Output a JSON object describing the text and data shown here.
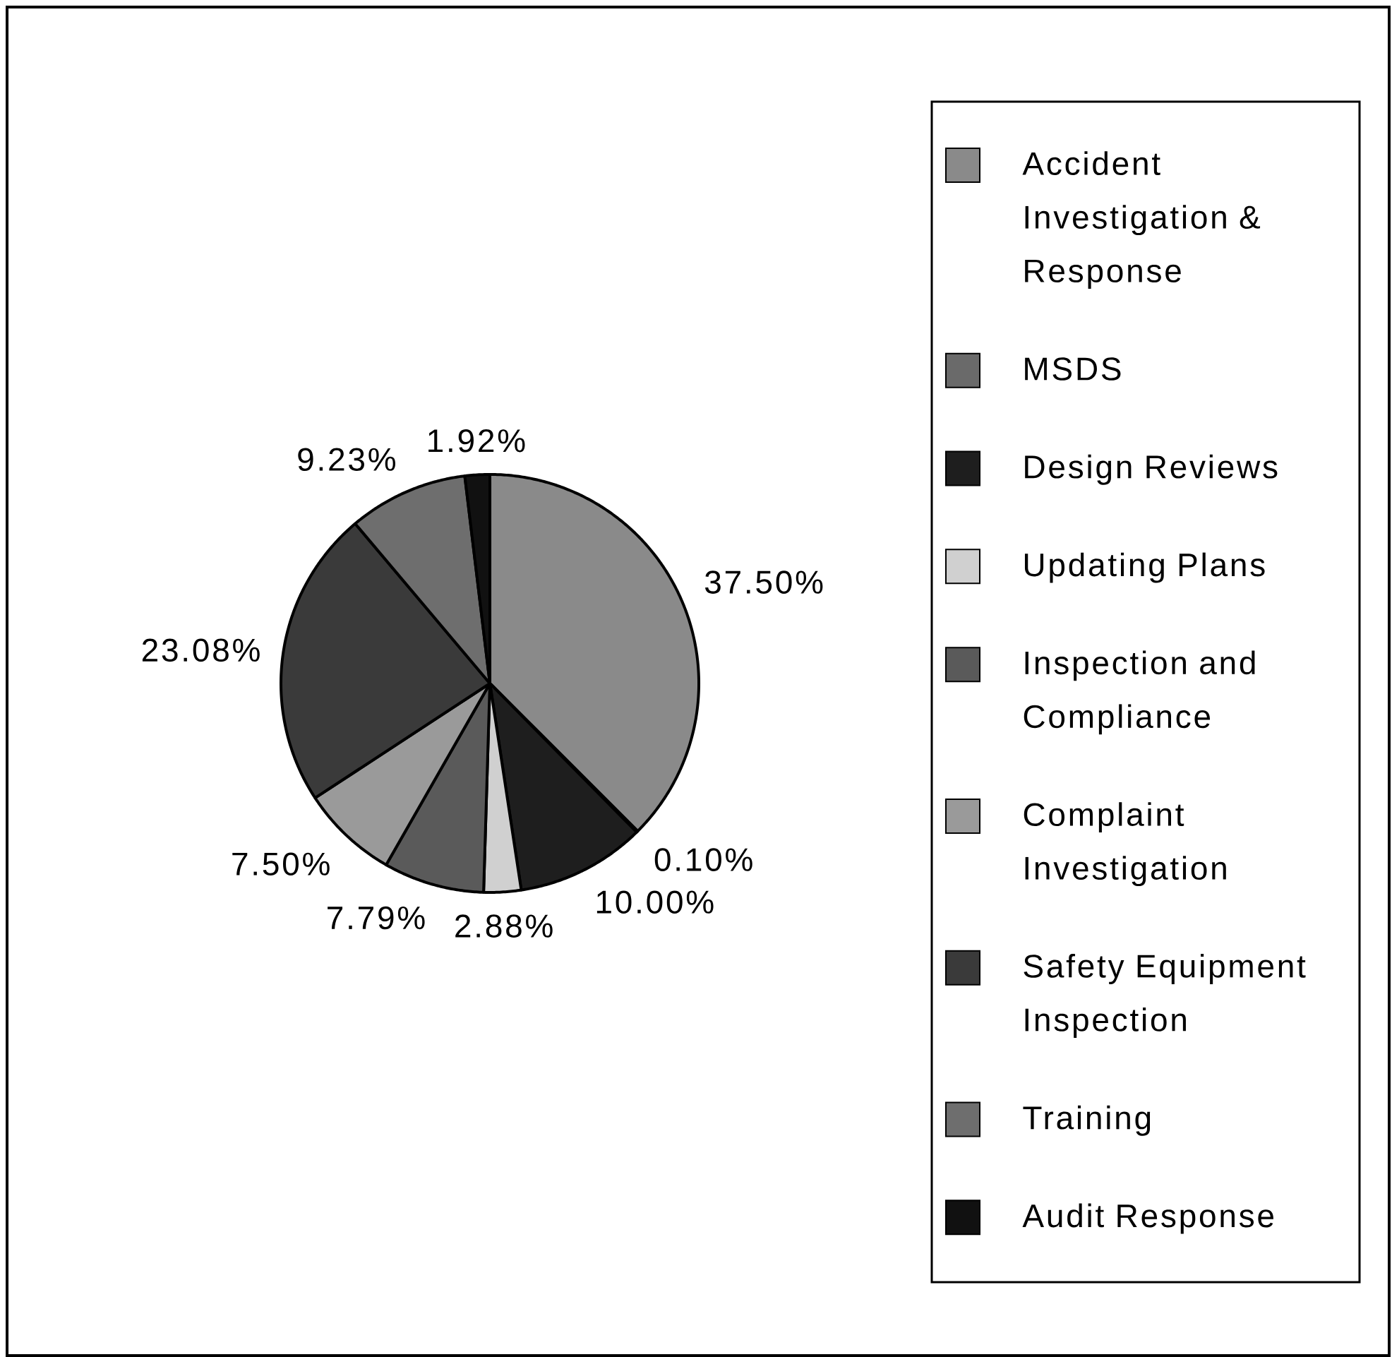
{
  "chart_data": {
    "type": "pie",
    "categories": [
      "Accident Investigation & Response",
      "MSDS",
      "Design Reviews",
      "Updating Plans",
      "Inspection and Compliance",
      "Complaint Investigation",
      "Safety Equipment Inspection",
      "Training",
      "Audit Response"
    ],
    "values": [
      37.5,
      0.1,
      10.0,
      2.88,
      7.79,
      7.5,
      23.08,
      9.23,
      1.92
    ],
    "value_labels": [
      "37.50%",
      "0.10%",
      "10.00%",
      "2.88%",
      "7.79%",
      "7.50%",
      "23.08%",
      "9.23%",
      "1.92%"
    ],
    "colors": [
      "#8a8a8a",
      "#6a6a6a",
      "#1e1e1e",
      "#d0d0d0",
      "#5a5a5a",
      "#9a9a9a",
      "#3a3a3a",
      "#6e6e6e",
      "#111111"
    ],
    "legend": "right"
  }
}
